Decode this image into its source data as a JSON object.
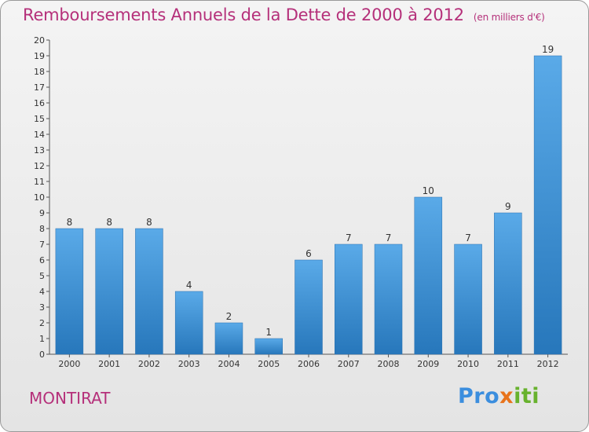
{
  "title": "Remboursements Annuels de la Dette de 2000 à 2012",
  "unit_note": "(en milliers d'€)",
  "commune": "MONTIRAT",
  "logo": {
    "part1": "Pro",
    "part2": "x",
    "part3": "iti"
  },
  "colors": {
    "title": "#b5307a",
    "bar_light": "#5aaae8",
    "bar_dark": "#2777bb"
  },
  "chart_data": {
    "type": "bar",
    "title": "Remboursements Annuels de la Dette de 2000 à 2012",
    "categories": [
      "2000",
      "2001",
      "2002",
      "2003",
      "2004",
      "2005",
      "2006",
      "2007",
      "2008",
      "2009",
      "2010",
      "2011",
      "2012"
    ],
    "values": [
      8,
      8,
      8,
      4,
      2,
      1,
      6,
      7,
      7,
      10,
      7,
      9,
      19
    ],
    "ylim": [
      0,
      20
    ],
    "yticks": [
      0,
      1,
      2,
      3,
      4,
      5,
      6,
      7,
      8,
      9,
      10,
      11,
      12,
      13,
      14,
      15,
      16,
      17,
      18,
      19,
      20
    ],
    "grid": false,
    "legend": "none"
  }
}
